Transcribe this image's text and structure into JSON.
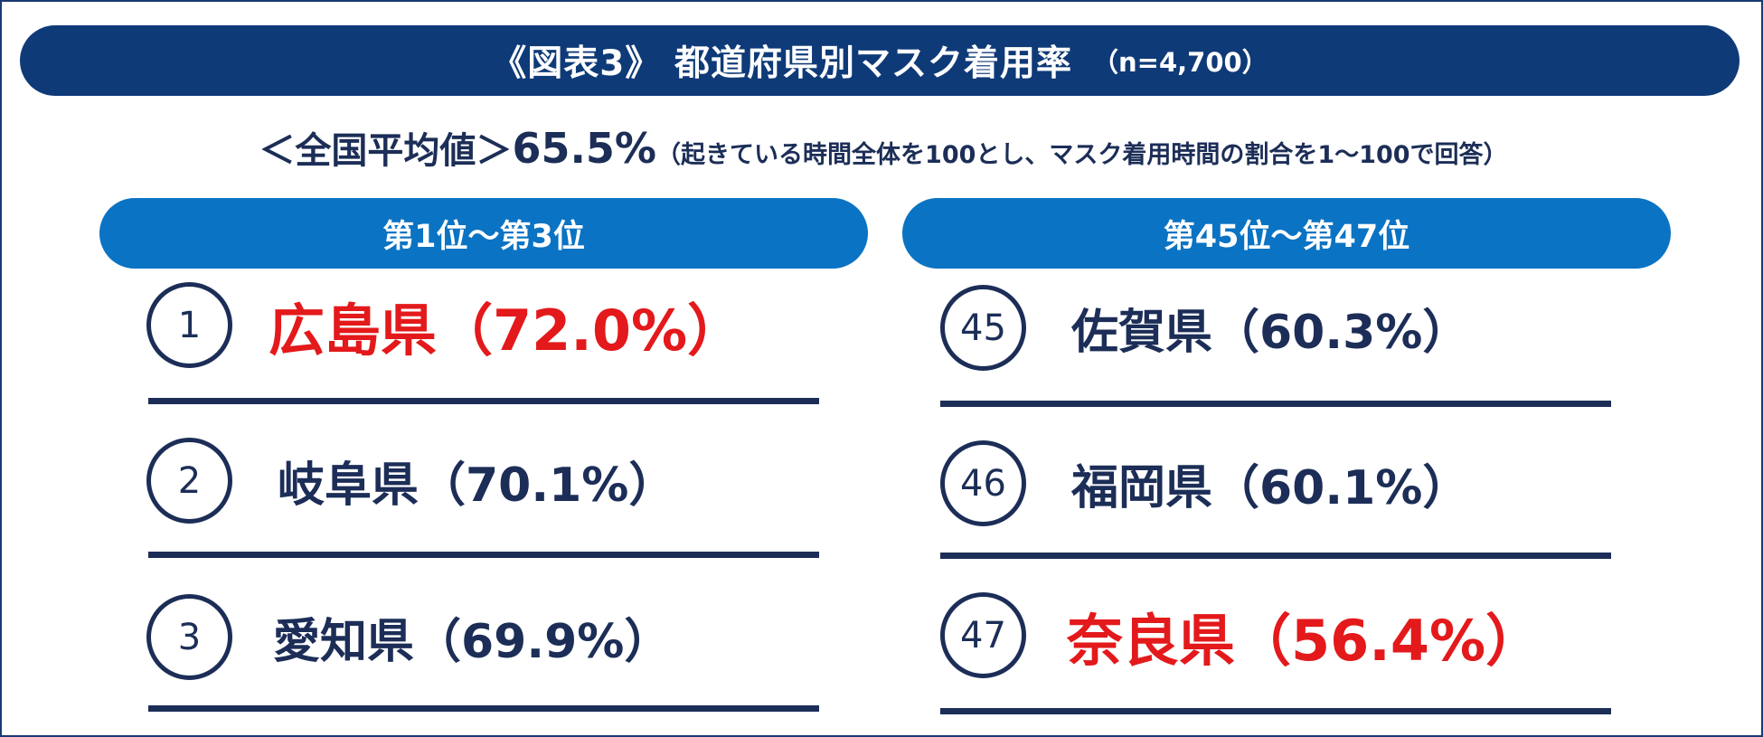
{
  "title": {
    "main": "《図表3》 都道府県別マスク着用率",
    "sample": "（n=4,700）"
  },
  "national_average": {
    "label": "＜全国平均値＞",
    "value": "65.5%",
    "note": "（起きている時間全体を100とし、マスク着用時間の割合を1～100で回答）"
  },
  "top_group": {
    "header": "第1位～第3位",
    "items": [
      {
        "rank": "1",
        "text": "広島県（72.0%）",
        "highlight": true
      },
      {
        "rank": "2",
        "text": "岐阜県（70.1%）",
        "highlight": false
      },
      {
        "rank": "3",
        "text": "愛知県（69.9%）",
        "highlight": false
      }
    ]
  },
  "bottom_group": {
    "header": "第45位～第47位",
    "items": [
      {
        "rank": "45",
        "text": "佐賀県（60.3%）",
        "highlight": false
      },
      {
        "rank": "46",
        "text": "福岡県（60.1%）",
        "highlight": false
      },
      {
        "rank": "47",
        "text": "奈良県（56.4%）",
        "highlight": true
      }
    ]
  },
  "colors": {
    "title_banner": "#0f3a78",
    "group_header": "#0b73c3",
    "text_navy": "#1c2e57",
    "highlight_red": "#e3191b"
  }
}
